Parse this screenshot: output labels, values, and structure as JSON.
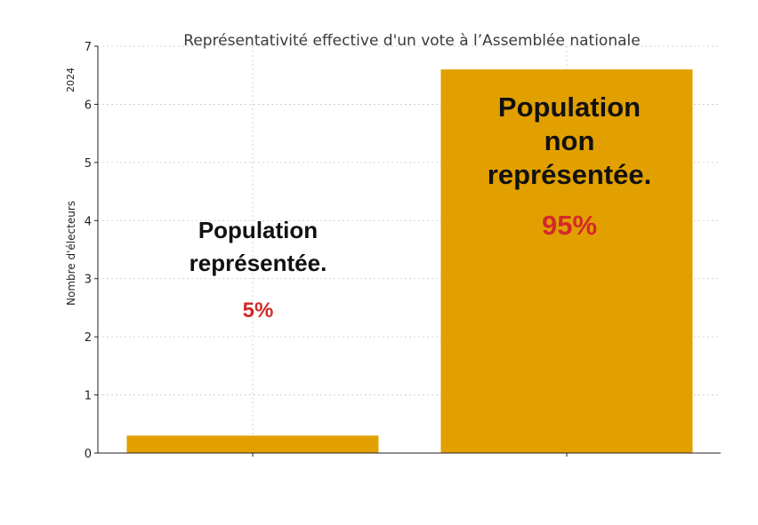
{
  "chart_data": {
    "type": "bar",
    "title": "Représentativité effective d'un vote à l’Assemblée nationale",
    "ylabel": "Nombre d'électeurs",
    "year_label": "2024",
    "xlabel": "",
    "ylim": [
      0,
      7
    ],
    "yticks": [
      "0",
      "1",
      "2",
      "3",
      "4",
      "5",
      "6",
      "7"
    ],
    "grid": true,
    "categories": [
      "",
      ""
    ],
    "values": [
      0.3,
      6.6
    ],
    "bar_color": "#e2a000",
    "annotations": [
      {
        "lines": [
          "Population",
          "représentée."
        ],
        "percent": "5%"
      },
      {
        "lines": [
          "Population",
          "non",
          "représentée."
        ],
        "percent": "95%"
      }
    ],
    "percent_color": "#d22a2a"
  }
}
